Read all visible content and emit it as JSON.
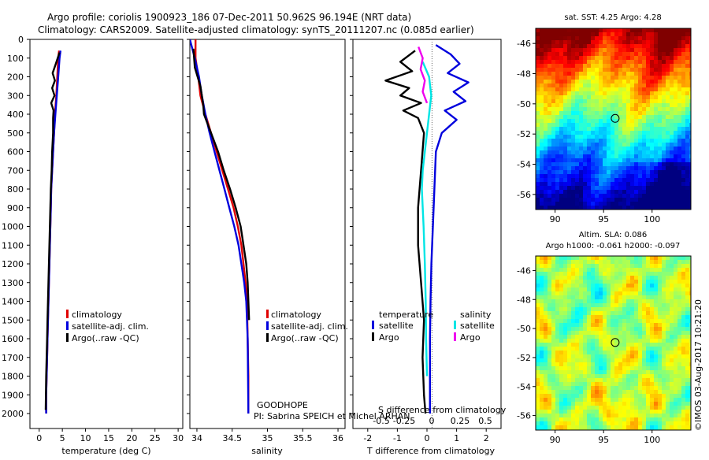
{
  "header": {
    "line1": "Argo profile: coriolis 1900923_186 07-Dec-2011 50.962S 96.194E (NRT data)",
    "line2": "Climatology: CARS2009. Satellite-adjusted climatology: synTS_20111207.nc (0.085d earlier)"
  },
  "colors": {
    "climatology": "#e00000",
    "satellite": "#0000dd",
    "argo": "#000000",
    "sat_salinity": "#00e5e5",
    "argo_salinity": "#ee00ee"
  },
  "chart_data": [
    {
      "id": "temperature",
      "type": "line",
      "xlabel": "temperature (deg C)",
      "ylabel": "",
      "xlim": [
        -2,
        31
      ],
      "ylim": [
        2080,
        0
      ],
      "xticks": [
        0,
        5,
        10,
        15,
        20,
        25,
        30
      ],
      "yticks": [
        0,
        100,
        200,
        300,
        400,
        500,
        600,
        700,
        800,
        900,
        1000,
        1100,
        1200,
        1300,
        1400,
        1500,
        1600,
        1700,
        1800,
        1900,
        2000
      ],
      "legend": [
        "climatology",
        "satellite-adj. clim.",
        "Argo(..raw -QC)"
      ],
      "series": [
        {
          "name": "climatology",
          "color": "#e00000",
          "x": [
            4.3,
            4.1,
            3.9,
            3.7,
            3.4,
            3.2,
            3.0,
            2.8,
            2.6,
            2.5,
            2.4,
            2.3,
            2.2,
            2.1,
            1.9,
            1.8,
            1.7,
            1.6,
            1.5,
            1.5
          ],
          "y": [
            60,
            100,
            200,
            300,
            400,
            500,
            600,
            700,
            800,
            900,
            1000,
            1100,
            1200,
            1300,
            1500,
            1600,
            1700,
            1800,
            1900,
            2000
          ]
        },
        {
          "name": "satellite-adj. clim.",
          "color": "#0000dd",
          "x": [
            4.6,
            4.4,
            4.1,
            3.8,
            3.5,
            3.2,
            3.0,
            2.8,
            2.6,
            2.5,
            2.4,
            2.3,
            2.2,
            2.1,
            1.9,
            1.8,
            1.7,
            1.6,
            1.5,
            1.5
          ],
          "y": [
            60,
            100,
            200,
            300,
            400,
            500,
            600,
            700,
            800,
            900,
            1000,
            1100,
            1200,
            1300,
            1500,
            1600,
            1700,
            1800,
            1900,
            2000
          ]
        },
        {
          "name": "Argo(..raw -QC)",
          "color": "#000000",
          "x": [
            4.4,
            3.6,
            2.9,
            3.4,
            2.8,
            3.3,
            2.6,
            3.1,
            3.0,
            3.0,
            2.8,
            2.7,
            2.5,
            2.4,
            2.3,
            2.1,
            1.9,
            1.8,
            1.7,
            1.6,
            1.5,
            1.4
          ],
          "y": [
            70,
            130,
            180,
            220,
            260,
            300,
            340,
            380,
            420,
            500,
            600,
            700,
            800,
            900,
            1000,
            1200,
            1400,
            1500,
            1600,
            1700,
            1800,
            1980
          ]
        }
      ]
    },
    {
      "id": "salinity",
      "type": "line",
      "xlabel": "salinity",
      "xlim": [
        33.9,
        36.1
      ],
      "ylim": [
        2080,
        0
      ],
      "xticks": [
        34,
        34.5,
        35,
        35.5,
        36
      ],
      "legend": [
        "climatology",
        "satellite-adj. clim.",
        "Argo(..raw -QC)"
      ],
      "series": [
        {
          "name": "climatology",
          "color": "#e00000",
          "x": [
            33.98,
            33.98,
            34.02,
            34.05,
            34.12,
            34.2,
            34.28,
            34.36,
            34.44,
            34.52,
            34.58,
            34.63,
            34.66,
            34.69,
            34.71,
            34.72,
            34.73,
            34.73
          ],
          "y": [
            0,
            100,
            200,
            300,
            400,
            500,
            600,
            700,
            800,
            900,
            1000,
            1100,
            1200,
            1300,
            1400,
            1600,
            1800,
            2000
          ]
        },
        {
          "name": "satellite-adj. clim.",
          "color": "#0000dd",
          "x": [
            33.9,
            33.97,
            34.03,
            34.07,
            34.12,
            34.18,
            34.25,
            34.32,
            34.39,
            34.46,
            34.53,
            34.59,
            34.63,
            34.67,
            34.7,
            34.72,
            34.73
          ],
          "y": [
            0,
            100,
            200,
            300,
            400,
            500,
            600,
            700,
            800,
            900,
            1000,
            1100,
            1200,
            1300,
            1400,
            1600,
            2000
          ]
        },
        {
          "name": "Argo(..raw -QC)",
          "color": "#000000",
          "x": [
            33.95,
            33.97,
            34.05,
            34.09,
            34.1,
            34.2,
            34.3,
            34.38,
            34.47,
            34.55,
            34.62,
            34.66,
            34.7,
            34.72,
            34.73,
            34.74
          ],
          "y": [
            50,
            150,
            250,
            350,
            400,
            500,
            600,
            700,
            800,
            900,
            1000,
            1100,
            1200,
            1300,
            1400,
            1500
          ]
        }
      ],
      "annotations": [
        "GOODHOPE",
        "PI: Sabrina SPEICH et Michel ARHAN"
      ]
    },
    {
      "id": "differences",
      "type": "line",
      "xlabel": "T difference from climatology",
      "top_xlabel": "S difference from climatology",
      "xlim": [
        -2.5,
        2.5
      ],
      "ylim": [
        2080,
        0
      ],
      "xticks": [
        -2,
        -1,
        0,
        1,
        2
      ],
      "top_xticks": [
        "-0.5",
        "-0.25",
        "0",
        "0.25",
        "0.5"
      ],
      "legend_title_left": "temperature",
      "legend_title_right": "salinity",
      "legend": [
        "satellite",
        "Argo",
        "satellite",
        "Argo"
      ],
      "series": [
        {
          "name": "satellite",
          "group": "temperature",
          "color": "#0000dd",
          "x": [
            0.3,
            0.8,
            1.1,
            0.7,
            1.4,
            0.9,
            1.3,
            0.6,
            1.0,
            0.5,
            0.3,
            0.25,
            0.2,
            0.15,
            0.12,
            0.1,
            0.1,
            0.1
          ],
          "y": [
            30,
            80,
            130,
            180,
            230,
            280,
            330,
            380,
            430,
            500,
            600,
            800,
            1000,
            1200,
            1400,
            1600,
            1800,
            2000
          ]
        },
        {
          "name": "Argo",
          "group": "temperature",
          "color": "#000000",
          "x": [
            -0.4,
            -0.9,
            -0.5,
            -1.4,
            -0.6,
            -0.9,
            -0.2,
            -0.8,
            -0.3,
            -0.1,
            -0.2,
            -0.3,
            -0.3,
            -0.2,
            -0.1,
            -0.15,
            -0.1,
            -0.05
          ],
          "y": [
            60,
            120,
            170,
            220,
            260,
            300,
            340,
            380,
            420,
            500,
            700,
            900,
            1100,
            1300,
            1500,
            1700,
            1900,
            2000
          ]
        },
        {
          "name": "satellite",
          "group": "salinity",
          "color": "#00e5e5",
          "x": [
            -0.1,
            0.05,
            0.1,
            0.05,
            0.0,
            -0.05,
            -0.1,
            -0.12,
            -0.1,
            -0.08,
            -0.05,
            -0.03,
            -0.02,
            0.0
          ],
          "y": [
            120,
            200,
            300,
            400,
            500,
            600,
            700,
            800,
            900,
            1000,
            1200,
            1400,
            1600,
            1800
          ]
        },
        {
          "name": "Argo",
          "group": "salinity",
          "color": "#ee00ee",
          "x": [
            -0.2,
            -0.1,
            -0.15,
            -0.05,
            -0.1,
            0.0
          ],
          "y": [
            40,
            100,
            160,
            220,
            280,
            340
          ]
        }
      ]
    },
    {
      "id": "sst_map",
      "type": "heatmap",
      "title": "sat. SST: 4.25 Argo: 4.28",
      "xlim": [
        88,
        104
      ],
      "ylim": [
        -57,
        -45
      ],
      "xticks": [
        90,
        95,
        100
      ],
      "yticks": [
        -46,
        -48,
        -50,
        -52,
        -54,
        -56
      ],
      "marker": {
        "lon": 96.194,
        "lat": -50.962
      }
    },
    {
      "id": "sla_map",
      "type": "heatmap",
      "title": "Altim. SLA: 0.086",
      "subtitle": "Argo h1000: -0.061 h2000: -0.097",
      "xlim": [
        88,
        104
      ],
      "ylim": [
        -57,
        -45
      ],
      "xticks": [
        90,
        95,
        100
      ],
      "yticks": [
        -46,
        -48,
        -50,
        -52,
        -54,
        -56
      ],
      "marker": {
        "lon": 96.194,
        "lat": -50.962
      }
    }
  ],
  "footer_stamp": "©IMOS 03-Aug-2017 10:21:20"
}
